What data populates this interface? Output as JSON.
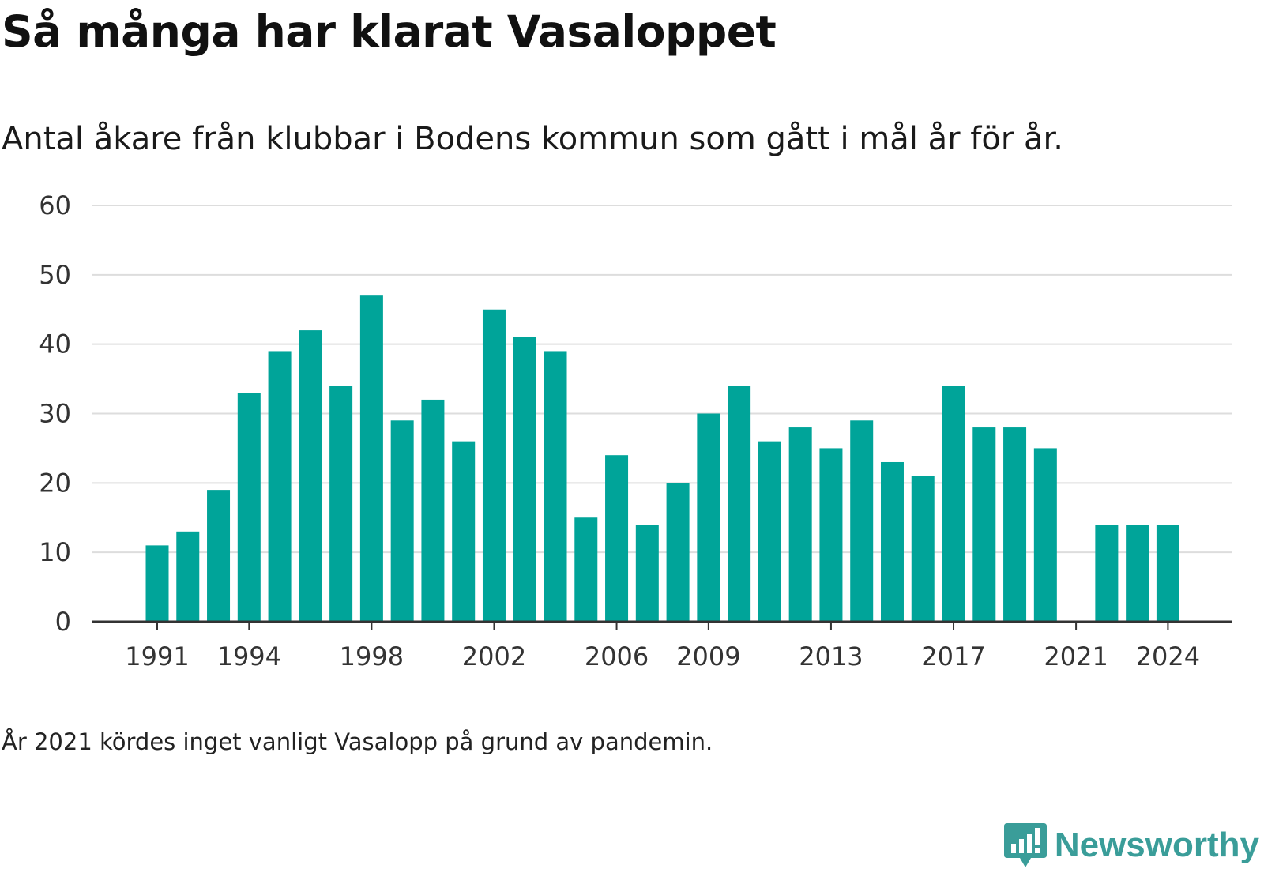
{
  "chart_data": {
    "type": "bar",
    "title": "Så många har klarat Vasaloppet",
    "subtitle": "Antal åkare från klubbar i Bodens kommun som gått i mål år för år.",
    "xlabel": "",
    "ylabel": "",
    "ylim": [
      0,
      60
    ],
    "yticks": [
      0,
      10,
      20,
      30,
      40,
      50,
      60
    ],
    "xtick_labels": [
      "1991",
      "1994",
      "1998",
      "2002",
      "2006",
      "2009",
      "2013",
      "2017",
      "2021",
      "2024"
    ],
    "categories": [
      1991,
      1992,
      1993,
      1994,
      1995,
      1996,
      1997,
      1998,
      1999,
      2000,
      2001,
      2002,
      2003,
      2004,
      2005,
      2006,
      2007,
      2008,
      2009,
      2010,
      2011,
      2012,
      2013,
      2014,
      2015,
      2016,
      2017,
      2018,
      2019,
      2020,
      2021,
      2022,
      2023,
      2024
    ],
    "values": [
      11,
      13,
      19,
      33,
      39,
      42,
      34,
      47,
      29,
      32,
      26,
      45,
      41,
      39,
      15,
      24,
      14,
      20,
      30,
      34,
      26,
      28,
      25,
      29,
      23,
      21,
      34,
      28,
      28,
      25,
      null,
      14,
      14,
      14
    ],
    "bar_color": "#00a499",
    "grid": true,
    "note": "År 2021 kördes inget vanligt Vasalopp på grund av pandemin."
  },
  "brand": {
    "name": "Newsworthy",
    "logo_icon": "newsworthy-chart-bubble-icon",
    "color": "#3a9d99"
  }
}
